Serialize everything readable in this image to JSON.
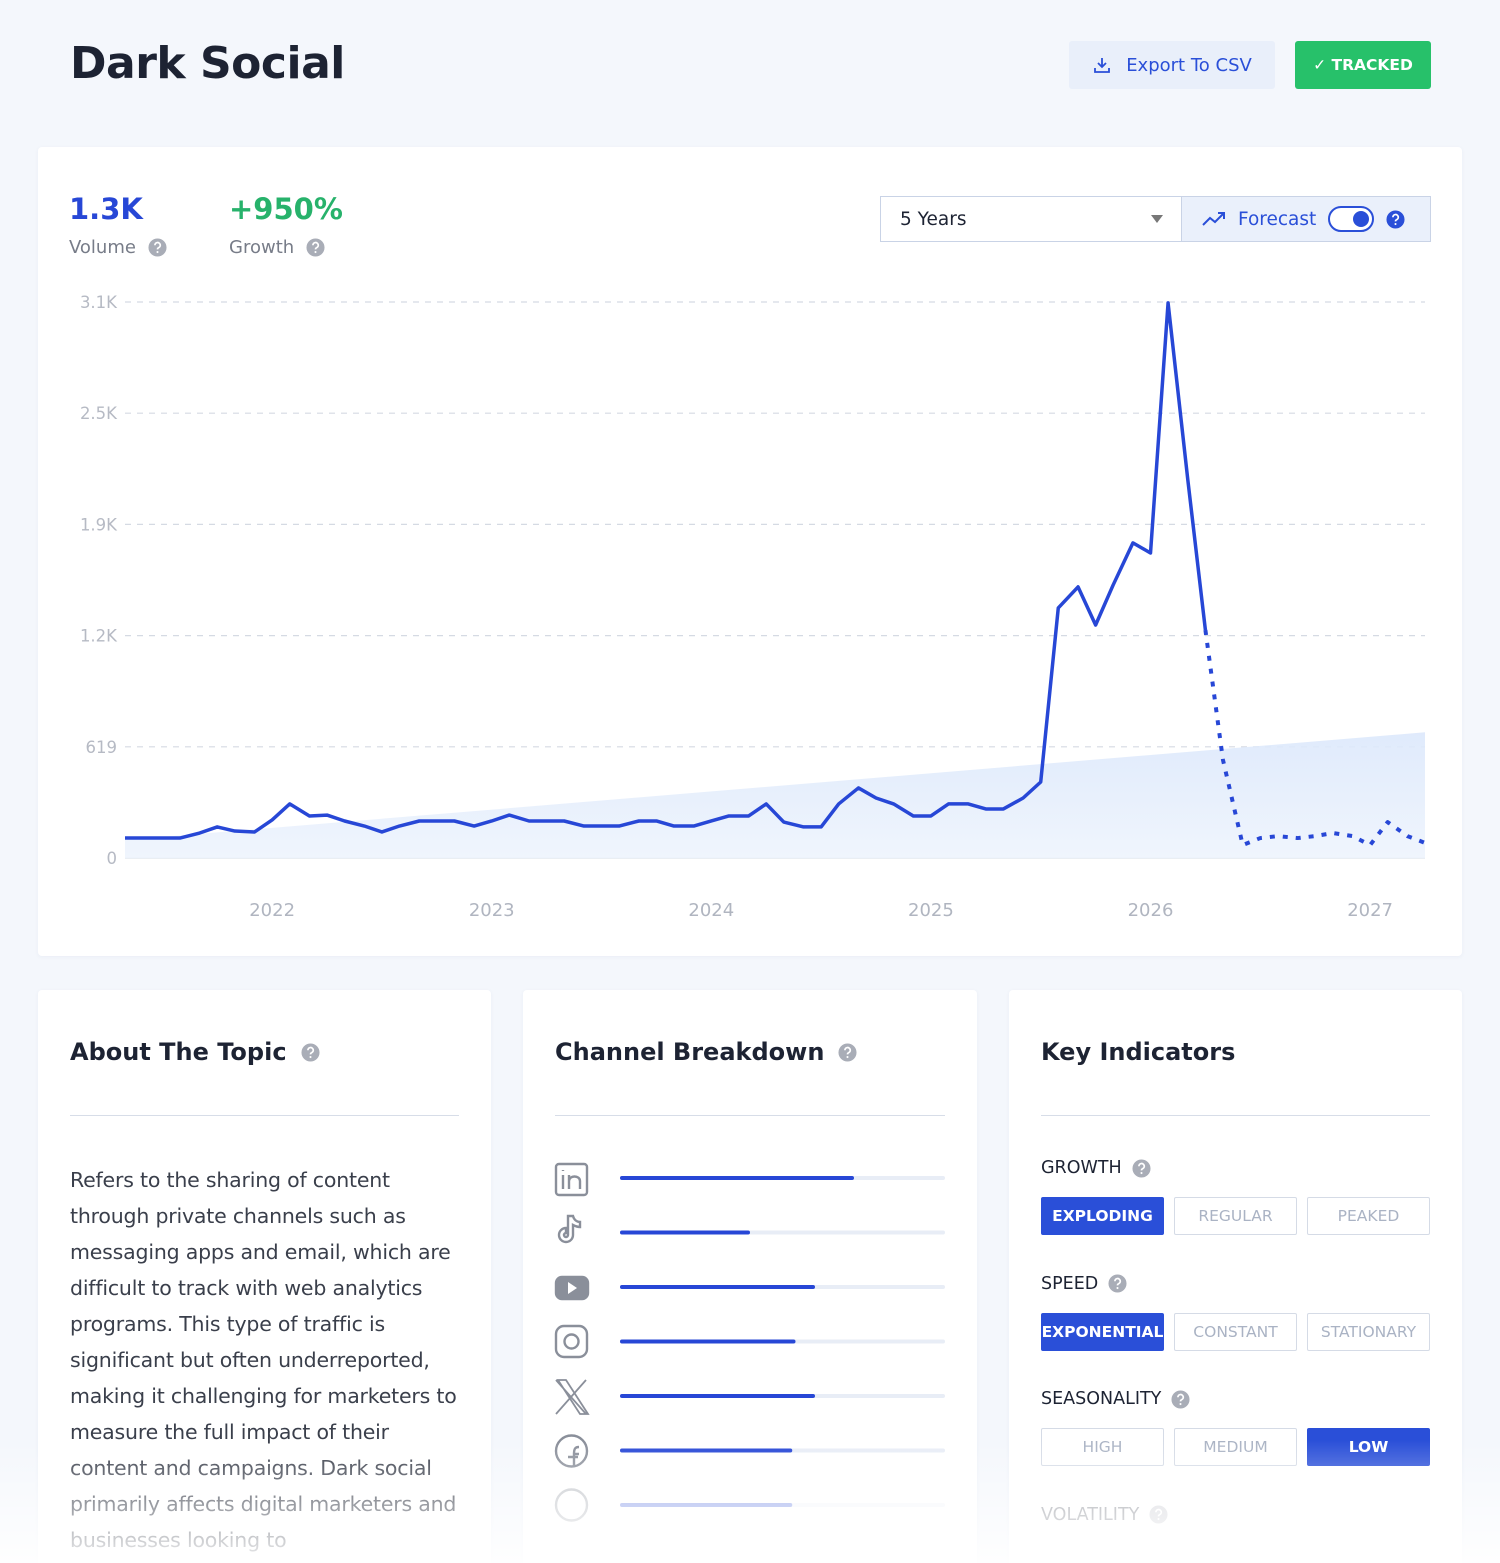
{
  "header": {
    "title": "Dark Social",
    "export_button": "Export To CSV",
    "tracked_button": "✓ TRACKED"
  },
  "stats": [
    {
      "value": "1.3K",
      "label": "Volume"
    },
    {
      "value": "+950%",
      "label": "Growth"
    }
  ],
  "controls": {
    "range": "5 Years",
    "forecast": "Forecast",
    "forecast_on": true
  },
  "chart_data": {
    "type": "line",
    "xlim": [
      2021.33,
      2027.25
    ],
    "xticks": [
      2022,
      2023,
      2024,
      2025,
      2026,
      2027
    ],
    "ylim": [
      0,
      3095
    ],
    "yticks": [
      0,
      619,
      {
        "value": 1238,
        "label": "1.2K"
      },
      {
        "value": 1857,
        "label": "1.9K"
      },
      {
        "value": 2476,
        "label": "2.5K"
      },
      {
        "value": 3095,
        "label": "3.1K"
      }
    ],
    "grid": true,
    "series": [
      {
        "color": "#2747d6",
        "x": [
          2021.33,
          2021.42,
          2021.5,
          2021.58,
          2021.67,
          2021.75,
          2021.83,
          2021.92,
          2022,
          2022.08,
          2022.17,
          2022.25,
          2022.33,
          2022.42,
          2022.5,
          2022.58,
          2022.67,
          2022.75,
          2022.83,
          2022.92,
          2023,
          2023.08,
          2023.17,
          2023.25,
          2023.33,
          2023.42,
          2023.5,
          2023.58,
          2023.67,
          2023.75,
          2023.83,
          2023.92,
          2024,
          2024.08,
          2024.17,
          2024.25,
          2024.33,
          2024.42,
          2024.5,
          2024.58,
          2024.67,
          2024.75,
          2024.83,
          2024.92,
          2025,
          2025.08,
          2025.17,
          2025.25,
          2025.33,
          2025.42,
          2025.5,
          2025.58,
          2025.67,
          2025.75,
          2025.83,
          2025.92,
          2026,
          2026.08,
          2026.17,
          2026.25
        ],
        "values": [
          111,
          111,
          111,
          111,
          139,
          173,
          150,
          145,
          212,
          301,
          234,
          239,
          206,
          178,
          145,
          178,
          206,
          206,
          206,
          178,
          206,
          239,
          206,
          206,
          206,
          178,
          178,
          178,
          206,
          206,
          178,
          178,
          206,
          234,
          234,
          301,
          200,
          173,
          173,
          301,
          390,
          334,
          301,
          234,
          234,
          301,
          301,
          273,
          273,
          334,
          423,
          1392,
          1509,
          1297,
          1520,
          1754,
          1698,
          3090,
          2104,
          1269
        ]
      },
      {
        "color": "#2747d6",
        "dashed": true,
        "x": [
          2026.25,
          2026.33,
          2026.42,
          2026.5,
          2026.58,
          2026.67,
          2026.75,
          2026.83,
          2026.92,
          2027,
          2027.08,
          2027.17,
          2027.25
        ],
        "values": [
          1269,
          546,
          72,
          111,
          122,
          111,
          122,
          139,
          122,
          72,
          200,
          122,
          84
        ]
      }
    ],
    "trend": {
      "color": "#e2ecfb",
      "x": [
        2021.33,
        2027.25
      ],
      "values": [
        100,
        700
      ]
    }
  },
  "about": {
    "title": "About The Topic",
    "text": "Refers to the sharing of content through private channels such as messaging apps and email, which are difficult to track with web analytics programs. This type of traffic is significant but often underreported, making it challenging for marketers to measure the full impact of their content and campaigns. Dark social primarily affects digital marketers and businesses looking to"
  },
  "channels": {
    "title": "Channel Breakdown",
    "xlim": [
      0,
      100
    ],
    "color": "#2747d6",
    "values": [
      72,
      40,
      60,
      54,
      60,
      53,
      53
    ]
  },
  "indicators": {
    "title": "Key Indicators",
    "groups": [
      {
        "name": "GROWTH",
        "options": [
          "EXPLODING",
          "REGULAR",
          "PEAKED"
        ],
        "selected": 0
      },
      {
        "name": "SPEED",
        "options": [
          "EXPONENTIAL",
          "CONSTANT",
          "STATIONARY"
        ],
        "selected": 0
      },
      {
        "name": "SEASONALITY",
        "options": [
          "HIGH",
          "MEDIUM",
          "LOW"
        ],
        "selected": 2
      },
      {
        "name": "VOLATILITY"
      }
    ]
  }
}
